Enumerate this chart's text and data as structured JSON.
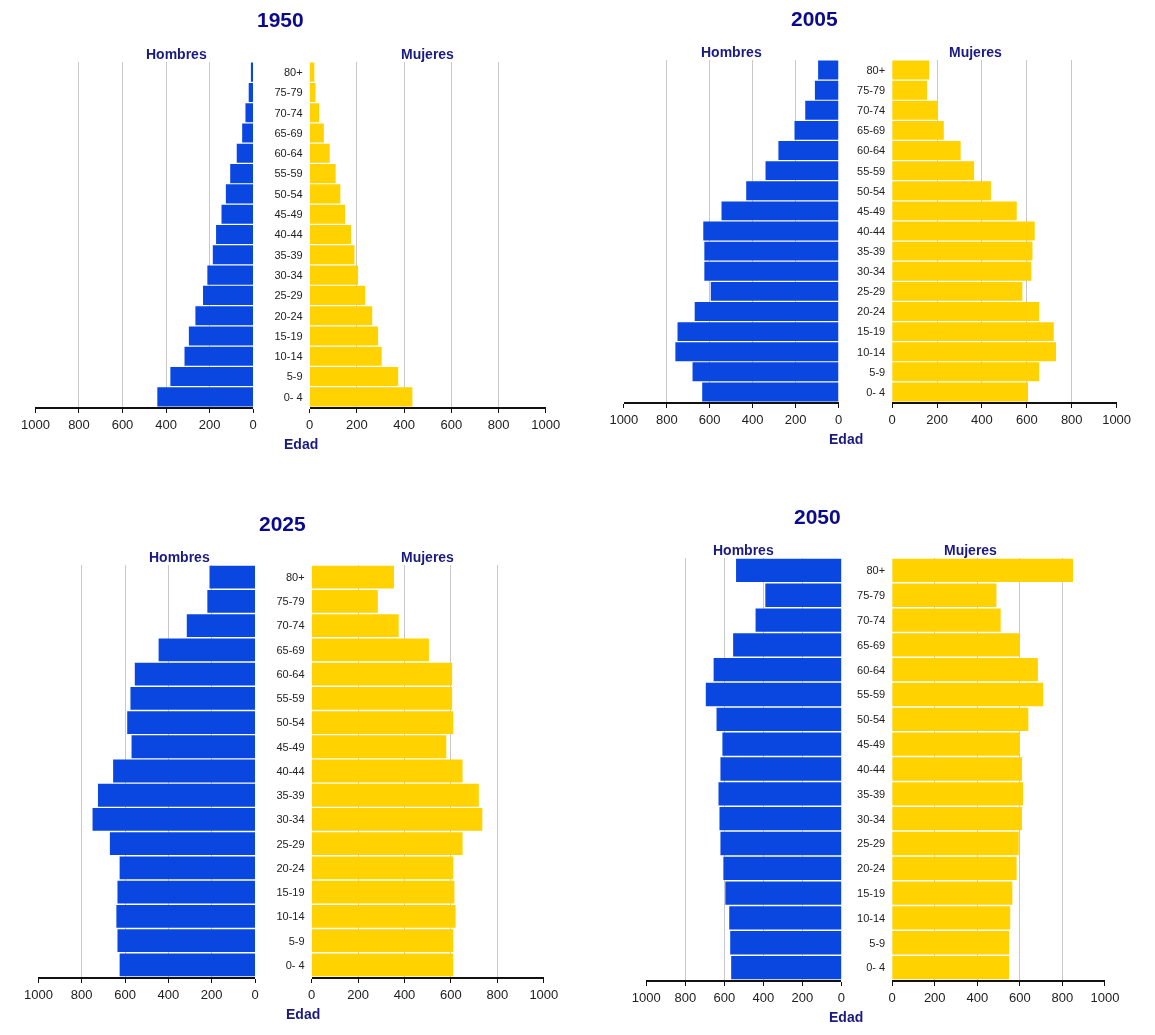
{
  "chart_data": [
    {
      "type": "bar",
      "orientation": "horizontal",
      "title": "1950",
      "subtitle": "Hombres",
      "categories": [
        "80+",
        "75-79",
        "70-74",
        "65-69",
        "60-64",
        "55-59",
        "50-54",
        "45-49",
        "40-44",
        "35-39",
        "30-34",
        "25-29",
        "20-24",
        "15-19",
        "10-14",
        "5-9",
        "0- 4"
      ],
      "values": [
        10,
        20,
        35,
        50,
        75,
        105,
        125,
        145,
        170,
        185,
        210,
        230,
        265,
        295,
        315,
        380,
        440
      ],
      "color": "#0a47e0",
      "xlim": [
        1000,
        0
      ],
      "xticks": [
        1000,
        800,
        600,
        400,
        200,
        0
      ],
      "grid": "x",
      "tick_labels": "x"
    },
    {
      "type": "bar",
      "orientation": "horizontal",
      "subtitle": "Mujeres",
      "ylabel": "Edad",
      "categories": [
        "80+",
        "75-79",
        "70-74",
        "65-69",
        "60-64",
        "55-59",
        "50-54",
        "45-49",
        "40-44",
        "35-39",
        "30-34",
        "25-29",
        "20-24",
        "15-19",
        "10-14",
        "5-9",
        "0- 4"
      ],
      "values": [
        20,
        25,
        40,
        60,
        85,
        110,
        130,
        150,
        175,
        190,
        205,
        235,
        265,
        290,
        305,
        375,
        435
      ],
      "color": "#ffd200",
      "xlim": [
        0,
        1000
      ],
      "xticks": [
        0,
        200,
        400,
        600,
        800,
        1000
      ],
      "grid": "x"
    },
    {
      "type": "bar",
      "orientation": "horizontal",
      "title": "2005",
      "subtitle": "Hombres",
      "categories": [
        "80+",
        "75-79",
        "70-74",
        "65-69",
        "60-64",
        "55-59",
        "50-54",
        "45-49",
        "40-44",
        "35-39",
        "30-34",
        "25-29",
        "20-24",
        "15-19",
        "10-14",
        "5-9",
        "0- 4"
      ],
      "values": [
        95,
        110,
        155,
        205,
        280,
        340,
        430,
        545,
        630,
        625,
        625,
        595,
        670,
        750,
        760,
        680,
        635
      ],
      "color": "#0a47e0",
      "xlim": [
        1000,
        0
      ],
      "xticks": [
        1000,
        800,
        600,
        400,
        200,
        0
      ],
      "grid": "x",
      "tick_labels": "x"
    },
    {
      "type": "bar",
      "orientation": "horizontal",
      "subtitle": "Mujeres",
      "ylabel": "Edad",
      "categories": [
        "80+",
        "75-79",
        "70-74",
        "65-69",
        "60-64",
        "55-59",
        "50-54",
        "45-49",
        "40-44",
        "35-39",
        "30-34",
        "25-29",
        "20-24",
        "15-19",
        "10-14",
        "5-9",
        "0- 4"
      ],
      "values": [
        165,
        155,
        200,
        230,
        305,
        365,
        440,
        555,
        635,
        625,
        620,
        580,
        655,
        720,
        730,
        655,
        605
      ],
      "color": "#ffd200",
      "xlim": [
        0,
        1000
      ],
      "xticks": [
        0,
        200,
        400,
        600,
        800,
        1000
      ],
      "grid": "x"
    },
    {
      "type": "bar",
      "orientation": "horizontal",
      "title": "2025",
      "subtitle": "Hombres",
      "categories": [
        "80+",
        "75-79",
        "70-74",
        "65-69",
        "60-64",
        "55-59",
        "50-54",
        "45-49",
        "40-44",
        "35-39",
        "30-34",
        "25-29",
        "20-24",
        "15-19",
        "10-14",
        "5-9",
        "0- 4"
      ],
      "values": [
        210,
        220,
        315,
        445,
        555,
        575,
        590,
        570,
        655,
        725,
        750,
        670,
        625,
        635,
        640,
        635,
        625
      ],
      "color": "#0a47e0",
      "xlim": [
        1000,
        0
      ],
      "xticks": [
        1000,
        800,
        600,
        400,
        200,
        0
      ],
      "grid": "x",
      "tick_labels": "x"
    },
    {
      "type": "bar",
      "orientation": "horizontal",
      "subtitle": "Mujeres",
      "ylabel": "Edad",
      "categories": [
        "80+",
        "75-79",
        "70-74",
        "65-69",
        "60-64",
        "55-59",
        "50-54",
        "45-49",
        "40-44",
        "35-39",
        "30-34",
        "25-29",
        "20-24",
        "15-19",
        "10-14",
        "5-9",
        "0- 4"
      ],
      "values": [
        355,
        285,
        375,
        505,
        605,
        605,
        610,
        580,
        650,
        720,
        735,
        650,
        610,
        615,
        620,
        610,
        610
      ],
      "color": "#ffd200",
      "xlim": [
        0,
        1000
      ],
      "xticks": [
        0,
        200,
        400,
        600,
        800,
        1000
      ],
      "grid": "x"
    },
    {
      "type": "bar",
      "orientation": "horizontal",
      "title": "2050",
      "subtitle": "Hombres",
      "categories": [
        "80+",
        "75-79",
        "70-74",
        "65-69",
        "60-64",
        "55-59",
        "50-54",
        "45-49",
        "40-44",
        "35-39",
        "30-34",
        "25-29",
        "20-24",
        "15-19",
        "10-14",
        "5-9",
        "0- 4"
      ],
      "values": [
        540,
        390,
        440,
        555,
        655,
        695,
        640,
        610,
        620,
        630,
        625,
        620,
        605,
        595,
        575,
        570,
        565
      ],
      "color": "#0a47e0",
      "xlim": [
        1000,
        0
      ],
      "xticks": [
        1000,
        800,
        600,
        400,
        200,
        0
      ],
      "grid": "x",
      "tick_labels": "x"
    },
    {
      "type": "bar",
      "orientation": "horizontal",
      "subtitle": "Mujeres",
      "ylabel": "Edad",
      "categories": [
        "80+",
        "75-79",
        "70-74",
        "65-69",
        "60-64",
        "55-59",
        "50-54",
        "45-49",
        "40-44",
        "35-39",
        "30-34",
        "25-29",
        "20-24",
        "15-19",
        "10-14",
        "5-9",
        "0- 4"
      ],
      "values": [
        850,
        490,
        510,
        600,
        685,
        710,
        640,
        600,
        610,
        615,
        610,
        595,
        585,
        565,
        555,
        550,
        550
      ],
      "color": "#ffd200",
      "xlim": [
        0,
        1000
      ],
      "xticks": [
        0,
        200,
        400,
        600,
        800,
        1000
      ],
      "grid": "x"
    }
  ]
}
